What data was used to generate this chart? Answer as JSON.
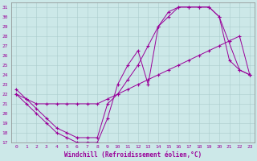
{
  "xlabel": "Windchill (Refroidissement éolien,°C)",
  "bg_color": "#cce8e8",
  "line_color": "#990099",
  "xlim": [
    -0.5,
    23.5
  ],
  "ylim": [
    17,
    31.5
  ],
  "yticks": [
    17,
    18,
    19,
    20,
    21,
    22,
    23,
    24,
    25,
    26,
    27,
    28,
    29,
    30,
    31
  ],
  "xticks": [
    0,
    1,
    2,
    3,
    4,
    5,
    6,
    7,
    8,
    9,
    10,
    11,
    12,
    13,
    14,
    15,
    16,
    17,
    18,
    19,
    20,
    21,
    22,
    23
  ],
  "grid_color": "#aacccc",
  "line1_x": [
    0,
    1,
    2,
    3,
    4,
    5,
    6,
    7,
    8,
    9,
    10,
    11,
    12,
    13,
    14,
    15,
    16,
    17,
    18,
    19,
    20,
    21,
    22,
    23
  ],
  "line1_y": [
    22,
    21,
    20,
    19,
    18,
    17.5,
    17,
    17,
    17,
    19.5,
    23,
    25,
    26.5,
    23,
    29,
    30.5,
    31,
    31,
    31,
    31,
    30,
    25.5,
    24.5,
    24
  ],
  "line2_x": [
    0,
    1,
    2,
    3,
    4,
    5,
    6,
    7,
    8,
    9,
    10,
    11,
    12,
    13,
    14,
    15,
    16,
    17,
    18,
    19,
    20,
    22,
    23
  ],
  "line2_y": [
    22,
    21.5,
    20.5,
    19.5,
    18.5,
    18,
    17.5,
    17.5,
    17.5,
    21,
    22,
    23.5,
    25,
    27,
    29,
    30,
    31,
    31,
    31,
    31,
    30,
    24.5,
    24
  ],
  "line3_x": [
    0,
    1,
    2,
    3,
    4,
    5,
    6,
    7,
    8,
    9,
    10,
    11,
    12,
    13,
    14,
    15,
    16,
    17,
    18,
    19,
    20,
    21,
    22,
    23
  ],
  "line3_y": [
    22.5,
    21.5,
    21,
    21,
    21,
    21,
    21,
    21,
    21,
    21.5,
    22,
    22.5,
    23,
    23.5,
    24,
    24.5,
    25,
    25.5,
    26,
    26.5,
    27,
    27.5,
    28,
    24
  ]
}
